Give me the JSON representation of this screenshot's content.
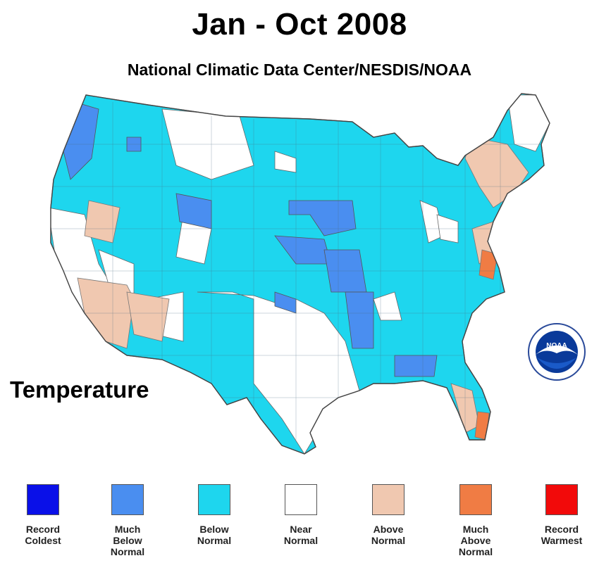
{
  "title": "Jan - Oct 2008",
  "subtitle": "National Climatic Data Center/NESDIS/NOAA",
  "variable_label": "Temperature",
  "logo": {
    "text": "NOAA",
    "icon": "noaa-logo-icon"
  },
  "colors": {
    "record_coldest": "#0a10e8",
    "much_below": "#4a8ef0",
    "below": "#1ed6ee",
    "near": "#ffffff",
    "above": "#f0c8b0",
    "much_above": "#f07c44",
    "record_warmest": "#f20a0a"
  },
  "legend": [
    {
      "label": "Record\nColdest",
      "color": "#0a10e8"
    },
    {
      "label": "Much\nBelow\nNormal",
      "color": "#4a8ef0"
    },
    {
      "label": "Below\nNormal",
      "color": "#1ed6ee"
    },
    {
      "label": "Near\nNormal",
      "color": "#ffffff"
    },
    {
      "label": "Above\nNormal",
      "color": "#f0c8b0"
    },
    {
      "label": "Much\nAbove\nNormal",
      "color": "#f07c44"
    },
    {
      "label": "Record\nWarmest",
      "color": "#f20a0a"
    }
  ]
}
